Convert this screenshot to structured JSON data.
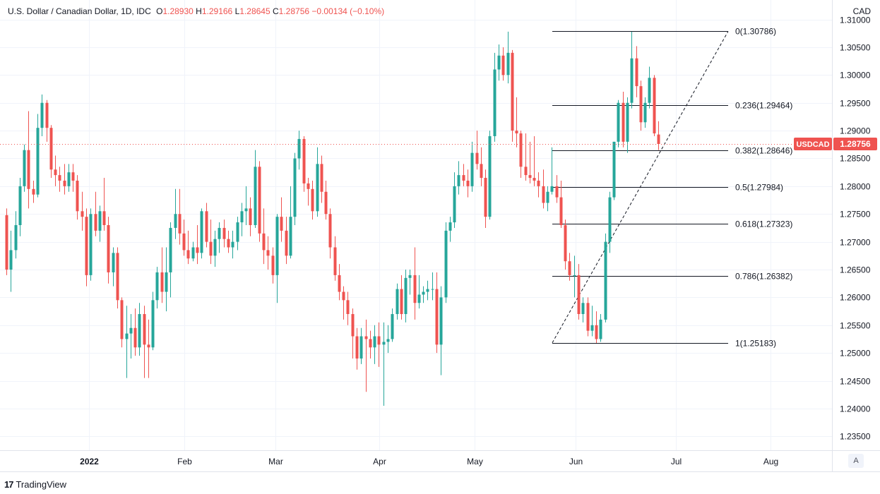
{
  "header": {
    "title": "U.S. Dollar / Canadian Dollar, 1D, IDC",
    "open_label": "O",
    "open": "1.28930",
    "high_label": "H",
    "high": "1.29166",
    "low_label": "L",
    "low": "1.28645",
    "close_label": "C",
    "close": "1.28756",
    "change": "−0.00134 (−0.10%)"
  },
  "currency": "CAD",
  "brand": {
    "logo": "17",
    "name": "TradingView"
  },
  "auto_scale_button": "A",
  "colors": {
    "up": "#26a69a",
    "down": "#ef5350",
    "grid": "#f0f3fa",
    "fib": "#131722"
  },
  "chart_data": {
    "type": "candlestick",
    "symbol_label": "USDCAD",
    "last_price": "1.28756",
    "ylim": [
      1.2325,
      1.3135
    ],
    "y_ticks": [
      "1.31000",
      "1.30500",
      "1.30000",
      "1.29500",
      "1.29000",
      "1.28500",
      "1.28000",
      "1.27500",
      "1.27000",
      "1.26500",
      "1.26000",
      "1.25500",
      "1.25000",
      "1.24500",
      "1.24000",
      "1.23500"
    ],
    "x_labels": [
      "2022",
      "Feb",
      "Mar",
      "Apr",
      "May",
      "Jun",
      "Jul",
      "Aug"
    ],
    "fib_levels": [
      {
        "ratio": "0",
        "price": 1.30786,
        "label": "0(1.30786)"
      },
      {
        "ratio": "0.236",
        "price": 1.29464,
        "label": "0.236(1.29464)"
      },
      {
        "ratio": "0.382",
        "price": 1.28646,
        "label": "0.382(1.28646)"
      },
      {
        "ratio": "0.5",
        "price": 1.27984,
        "label": "0.5(1.27984)"
      },
      {
        "ratio": "0.618",
        "price": 1.27323,
        "label": "0.618(1.27323)"
      },
      {
        "ratio": "0.786",
        "price": 1.26382,
        "label": "0.786(1.26382)"
      },
      {
        "ratio": "1",
        "price": 1.25183,
        "label": "1(1.25183)"
      }
    ],
    "candles": [
      [
        1.2748,
        1.276,
        1.264,
        1.265
      ],
      [
        1.265,
        1.272,
        1.261,
        1.2685
      ],
      [
        1.2685,
        1.2755,
        1.267,
        1.273
      ],
      [
        1.273,
        1.2815,
        1.271,
        1.28
      ],
      [
        1.28,
        1.2875,
        1.279,
        1.2865
      ],
      [
        1.2865,
        1.2935,
        1.276,
        1.2795
      ],
      [
        1.2795,
        1.281,
        1.277,
        1.2785
      ],
      [
        1.2785,
        1.293,
        1.278,
        1.2905
      ],
      [
        1.2905,
        1.2965,
        1.289,
        1.295
      ],
      [
        1.295,
        1.2955,
        1.288,
        1.2905
      ],
      [
        1.2905,
        1.291,
        1.2815,
        1.283
      ],
      [
        1.283,
        1.2855,
        1.28,
        1.282
      ],
      [
        1.282,
        1.2835,
        1.279,
        1.281
      ],
      [
        1.281,
        1.284,
        1.2785,
        1.28
      ],
      [
        1.28,
        1.284,
        1.279,
        1.2825
      ],
      [
        1.2825,
        1.284,
        1.279,
        1.281
      ],
      [
        1.281,
        1.282,
        1.274,
        1.2755
      ],
      [
        1.2755,
        1.279,
        1.272,
        1.2745
      ],
      [
        1.2745,
        1.276,
        1.262,
        1.264
      ],
      [
        1.264,
        1.276,
        1.263,
        1.275
      ],
      [
        1.275,
        1.279,
        1.271,
        1.272
      ],
      [
        1.272,
        1.2765,
        1.27,
        1.2755
      ],
      [
        1.2755,
        1.2815,
        1.272,
        1.273
      ],
      [
        1.273,
        1.2745,
        1.2625,
        1.2645
      ],
      [
        1.2645,
        1.269,
        1.262,
        1.268
      ],
      [
        1.268,
        1.269,
        1.258,
        1.2595
      ],
      [
        1.2595,
        1.26,
        1.251,
        1.2525
      ],
      [
        1.2525,
        1.2585,
        1.2455,
        1.2535
      ],
      [
        1.2535,
        1.257,
        1.249,
        1.2545
      ],
      [
        1.2545,
        1.258,
        1.2495,
        1.251
      ],
      [
        1.251,
        1.259,
        1.2495,
        1.257
      ],
      [
        1.257,
        1.2585,
        1.2455,
        1.2515
      ],
      [
        1.2515,
        1.256,
        1.2455,
        1.251
      ],
      [
        1.251,
        1.261,
        1.2505,
        1.2595
      ],
      [
        1.2595,
        1.2655,
        1.258,
        1.2645
      ],
      [
        1.2645,
        1.269,
        1.259,
        1.261
      ],
      [
        1.261,
        1.269,
        1.2575,
        1.2645
      ],
      [
        1.2645,
        1.2735,
        1.26,
        1.2725
      ],
      [
        1.2725,
        1.2795,
        1.2705,
        1.275
      ],
      [
        1.275,
        1.2795,
        1.2695,
        1.2715
      ],
      [
        1.2715,
        1.274,
        1.2675,
        1.2685
      ],
      [
        1.2685,
        1.272,
        1.266,
        1.267
      ],
      [
        1.267,
        1.27,
        1.2665,
        1.269
      ],
      [
        1.269,
        1.273,
        1.266,
        1.268
      ],
      [
        1.268,
        1.276,
        1.267,
        1.2755
      ],
      [
        1.2755,
        1.277,
        1.269,
        1.27
      ],
      [
        1.27,
        1.274,
        1.266,
        1.2675
      ],
      [
        1.2675,
        1.272,
        1.2655,
        1.2705
      ],
      [
        1.2705,
        1.2735,
        1.268,
        1.2725
      ],
      [
        1.2725,
        1.274,
        1.269,
        1.2705
      ],
      [
        1.2705,
        1.272,
        1.268,
        1.269
      ],
      [
        1.269,
        1.272,
        1.267,
        1.27
      ],
      [
        1.27,
        1.2745,
        1.2685,
        1.2735
      ],
      [
        1.2735,
        1.277,
        1.271,
        1.2755
      ],
      [
        1.2755,
        1.28,
        1.273,
        1.276
      ],
      [
        1.276,
        1.278,
        1.271,
        1.273
      ],
      [
        1.273,
        1.2865,
        1.2725,
        1.2835
      ],
      [
        1.2835,
        1.2845,
        1.27,
        1.2715
      ],
      [
        1.2715,
        1.276,
        1.266,
        1.2685
      ],
      [
        1.2685,
        1.271,
        1.265,
        1.2675
      ],
      [
        1.2675,
        1.269,
        1.2625,
        1.264
      ],
      [
        1.264,
        1.275,
        1.259,
        1.2745
      ],
      [
        1.2745,
        1.278,
        1.27,
        1.272
      ],
      [
        1.272,
        1.2745,
        1.266,
        1.2675
      ],
      [
        1.2675,
        1.28,
        1.267,
        1.2745
      ],
      [
        1.2745,
        1.286,
        1.273,
        1.285
      ],
      [
        1.285,
        1.29,
        1.283,
        1.2885
      ],
      [
        1.2885,
        1.289,
        1.279,
        1.2805
      ],
      [
        1.2805,
        1.2815,
        1.2765,
        1.2795
      ],
      [
        1.2795,
        1.281,
        1.274,
        1.2755
      ],
      [
        1.2755,
        1.287,
        1.2745,
        1.284
      ],
      [
        1.284,
        1.2855,
        1.277,
        1.279
      ],
      [
        1.279,
        1.281,
        1.274,
        1.275
      ],
      [
        1.275,
        1.276,
        1.267,
        1.269
      ],
      [
        1.269,
        1.271,
        1.263,
        1.264
      ],
      [
        1.264,
        1.266,
        1.2595,
        1.261
      ],
      [
        1.261,
        1.262,
        1.256,
        1.2595
      ],
      [
        1.2595,
        1.261,
        1.255,
        1.257
      ],
      [
        1.257,
        1.258,
        1.249,
        1.253
      ],
      [
        1.253,
        1.2545,
        1.247,
        1.249
      ],
      [
        1.249,
        1.2545,
        1.248,
        1.253
      ],
      [
        1.253,
        1.256,
        1.243,
        1.2525
      ],
      [
        1.2525,
        1.254,
        1.249,
        1.251
      ],
      [
        1.251,
        1.255,
        1.248,
        1.253
      ],
      [
        1.253,
        1.2555,
        1.2475,
        1.2515
      ],
      [
        1.2515,
        1.2555,
        1.2405,
        1.252
      ],
      [
        1.252,
        1.255,
        1.25,
        1.2525
      ],
      [
        1.2525,
        1.258,
        1.252,
        1.257
      ],
      [
        1.257,
        1.2625,
        1.256,
        1.2615
      ],
      [
        1.2615,
        1.264,
        1.256,
        1.257
      ],
      [
        1.257,
        1.265,
        1.2555,
        1.2635
      ],
      [
        1.2635,
        1.265,
        1.2605,
        1.264
      ],
      [
        1.264,
        1.269,
        1.256,
        1.259
      ],
      [
        1.259,
        1.264,
        1.258,
        1.2605
      ],
      [
        1.2605,
        1.262,
        1.259,
        1.261
      ],
      [
        1.261,
        1.263,
        1.2595,
        1.2615
      ],
      [
        1.2615,
        1.2645,
        1.2595,
        1.2615
      ],
      [
        1.2615,
        1.2645,
        1.25,
        1.2515
      ],
      [
        1.2515,
        1.262,
        1.246,
        1.26
      ],
      [
        1.26,
        1.2735,
        1.259,
        1.272
      ],
      [
        1.272,
        1.2745,
        1.27,
        1.2735
      ],
      [
        1.2735,
        1.2825,
        1.2725,
        1.28
      ],
      [
        1.28,
        1.2845,
        1.2785,
        1.282
      ],
      [
        1.282,
        1.284,
        1.28,
        1.281
      ],
      [
        1.281,
        1.283,
        1.278,
        1.28
      ],
      [
        1.28,
        1.288,
        1.279,
        1.286
      ],
      [
        1.286,
        1.29,
        1.283,
        1.284
      ],
      [
        1.284,
        1.287,
        1.28,
        1.2815
      ],
      [
        1.2815,
        1.283,
        1.2725,
        1.2745
      ],
      [
        1.2745,
        1.29,
        1.274,
        1.289
      ],
      [
        1.289,
        1.304,
        1.288,
        1.301
      ],
      [
        1.301,
        1.3055,
        1.299,
        1.3035
      ],
      [
        1.3035,
        1.305,
        1.299,
        1.3
      ],
      [
        1.3,
        1.3078,
        1.2985,
        1.304
      ],
      [
        1.304,
        1.3045,
        1.288,
        1.29
      ],
      [
        1.29,
        1.296,
        1.287,
        1.2895
      ],
      [
        1.2895,
        1.29,
        1.2815,
        1.2835
      ],
      [
        1.2835,
        1.2895,
        1.281,
        1.282
      ],
      [
        1.282,
        1.288,
        1.2805,
        1.2815
      ],
      [
        1.2815,
        1.289,
        1.28,
        1.281
      ],
      [
        1.281,
        1.2825,
        1.278,
        1.28
      ],
      [
        1.28,
        1.283,
        1.276,
        1.277
      ],
      [
        1.277,
        1.28,
        1.2755,
        1.279
      ],
      [
        1.279,
        1.287,
        1.2785,
        1.28
      ],
      [
        1.28,
        1.282,
        1.277,
        1.278
      ],
      [
        1.278,
        1.281,
        1.2725,
        1.273
      ],
      [
        1.273,
        1.274,
        1.265,
        1.2665
      ],
      [
        1.2665,
        1.268,
        1.263,
        1.264
      ],
      [
        1.264,
        1.2675,
        1.26,
        1.264
      ],
      [
        1.264,
        1.266,
        1.256,
        1.257
      ],
      [
        1.257,
        1.26,
        1.2555,
        1.259
      ],
      [
        1.259,
        1.26,
        1.253,
        1.254
      ],
      [
        1.254,
        1.2585,
        1.253,
        1.255
      ],
      [
        1.255,
        1.2575,
        1.2518,
        1.2525
      ],
      [
        1.2525,
        1.257,
        1.252,
        1.256
      ],
      [
        1.256,
        1.2715,
        1.2555,
        1.27
      ],
      [
        1.27,
        1.279,
        1.268,
        1.278
      ],
      [
        1.278,
        1.288,
        1.2775,
        1.288
      ],
      [
        1.288,
        1.2955,
        1.287,
        1.295
      ],
      [
        1.295,
        1.297,
        1.287,
        1.288
      ],
      [
        1.288,
        1.296,
        1.286,
        1.295
      ],
      [
        1.295,
        1.3078,
        1.294,
        1.303
      ],
      [
        1.303,
        1.3052,
        1.296,
        1.298
      ],
      [
        1.298,
        1.299,
        1.29,
        1.2915
      ],
      [
        1.2915,
        1.296,
        1.2905,
        1.295
      ],
      [
        1.295,
        1.3015,
        1.294,
        1.2995
      ],
      [
        1.2995,
        1.3,
        1.289,
        1.2895
      ],
      [
        1.2893,
        1.2917,
        1.2865,
        1.2876
      ]
    ]
  }
}
